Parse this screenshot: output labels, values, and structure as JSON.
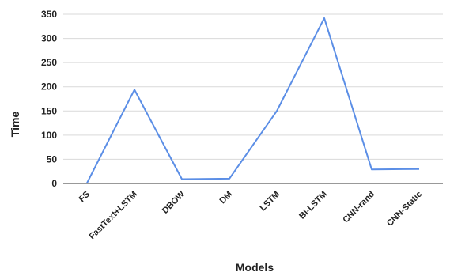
{
  "chart_data": {
    "type": "line",
    "categories": [
      "FS",
      "FastText+LSTM",
      "DBOW",
      "DM",
      "LSTM",
      "Bi-LSTM",
      "CNN-rand",
      "CNN-Static"
    ],
    "series": [
      {
        "values": [
          1,
          194,
          9,
          10,
          150,
          342,
          29,
          30
        ]
      }
    ],
    "xlabel": "Models",
    "ylabel": "Time",
    "ylim": [
      0,
      350
    ],
    "yticks": [
      0,
      50,
      100,
      150,
      200,
      250,
      300,
      350
    ],
    "grid": true,
    "colors": {
      "line": "#5b8ee6",
      "grid": "#d9d9d9",
      "axis": "#333333",
      "text": "#222222"
    }
  }
}
